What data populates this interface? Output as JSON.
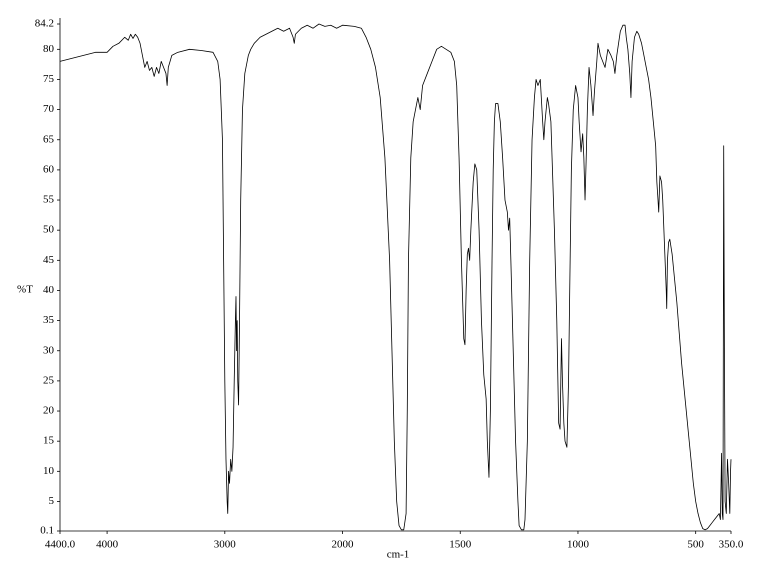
{
  "chart_data": {
    "type": "line",
    "y_label": "%T",
    "x_label": "cm-1",
    "color": "#000000",
    "grid": false,
    "xlim": [
      4400,
      350
    ],
    "x_scale_break": 2000,
    "xticks": [
      {
        "value": 4400,
        "label": "4400.0"
      },
      4000,
      3000,
      2000,
      1500,
      1000,
      500,
      {
        "value": 350,
        "label": "350.0"
      }
    ],
    "ylim": [
      0.1,
      84.2
    ],
    "yticks": [
      0.1,
      5,
      10,
      15,
      20,
      25,
      30,
      35,
      40,
      45,
      50,
      55,
      60,
      65,
      70,
      75,
      80,
      84.2
    ],
    "x": [
      4400,
      4300,
      4200,
      4100,
      4000,
      3950,
      3900,
      3850,
      3820,
      3800,
      3780,
      3760,
      3740,
      3720,
      3700,
      3680,
      3660,
      3640,
      3620,
      3600,
      3580,
      3560,
      3540,
      3520,
      3500,
      3490,
      3480,
      3450,
      3400,
      3300,
      3200,
      3100,
      3060,
      3040,
      3020,
      3010,
      3000,
      2990,
      2980,
      2975,
      2968,
      2960,
      2950,
      2940,
      2930,
      2920,
      2910,
      2905,
      2900,
      2895,
      2890,
      2883,
      2875,
      2865,
      2850,
      2830,
      2800,
      2780,
      2750,
      2700,
      2650,
      2600,
      2550,
      2500,
      2450,
      2420,
      2410,
      2400,
      2350,
      2300,
      2250,
      2200,
      2150,
      2100,
      2050,
      2000,
      1950,
      1920,
      1900,
      1880,
      1860,
      1840,
      1820,
      1800,
      1790,
      1780,
      1770,
      1760,
      1750,
      1740,
      1730,
      1725,
      1720,
      1710,
      1700,
      1690,
      1680,
      1670,
      1660,
      1640,
      1620,
      1600,
      1580,
      1560,
      1540,
      1525,
      1515,
      1505,
      1495,
      1485,
      1480,
      1475,
      1470,
      1465,
      1460,
      1455,
      1445,
      1438,
      1430,
      1420,
      1410,
      1400,
      1395,
      1390,
      1385,
      1378,
      1372,
      1365,
      1360,
      1355,
      1350,
      1340,
      1330,
      1320,
      1310,
      1300,
      1295,
      1290,
      1285,
      1275,
      1265,
      1255,
      1250,
      1240,
      1230,
      1225,
      1215,
      1205,
      1195,
      1185,
      1178,
      1170,
      1160,
      1150,
      1145,
      1140,
      1130,
      1125,
      1115,
      1110,
      1100,
      1090,
      1082,
      1076,
      1070,
      1066,
      1060,
      1055,
      1047,
      1040,
      1035,
      1028,
      1020,
      1010,
      1000,
      995,
      987,
      980,
      975,
      970,
      965,
      960,
      953,
      945,
      936,
      930,
      920,
      915,
      905,
      895,
      885,
      873,
      860,
      850,
      843,
      835,
      820,
      809,
      800,
      795,
      788,
      780,
      775,
      770,
      760,
      750,
      742,
      730,
      720,
      710,
      700,
      690,
      680,
      670,
      665,
      660,
      657,
      652,
      645,
      640,
      635,
      630,
      625,
      623,
      620,
      615,
      610,
      600,
      590,
      580,
      570,
      560,
      550,
      540,
      530,
      520,
      510,
      500,
      490,
      480,
      470,
      460,
      450,
      440,
      430,
      420,
      410,
      400,
      395,
      390,
      387,
      384,
      381,
      378,
      375,
      370,
      365,
      360,
      355,
      352,
      350
    ],
    "values": [
      78,
      78.5,
      79,
      79.5,
      79.5,
      80.5,
      81,
      82,
      81.5,
      82.5,
      81.8,
      82.5,
      82,
      81,
      79,
      77,
      78,
      76.5,
      77,
      75.5,
      77,
      76,
      78,
      77,
      76,
      74,
      77,
      79,
      79.5,
      80,
      79.8,
      79.5,
      78,
      75,
      65,
      45,
      25,
      12,
      5,
      3,
      10,
      8,
      12,
      10,
      14,
      25,
      35,
      39,
      30,
      35,
      25,
      21,
      35,
      55,
      70,
      76,
      79,
      80,
      81,
      82,
      82.5,
      83,
      83.5,
      83,
      83.5,
      82,
      81,
      82.5,
      83.5,
      84,
      83.5,
      84.2,
      83.8,
      84,
      83.5,
      84,
      83.8,
      83.5,
      82,
      80,
      77,
      72,
      62,
      45,
      30,
      15,
      5,
      1,
      0.3,
      0.3,
      3,
      20,
      45,
      62,
      68,
      70,
      72,
      70,
      74,
      76,
      78,
      80,
      80.5,
      80,
      79.5,
      78,
      74,
      62,
      45,
      32,
      31,
      40,
      46,
      47,
      45,
      50,
      58,
      61,
      60,
      50,
      35,
      26,
      24,
      22,
      15,
      9,
      20,
      45,
      60,
      68,
      71,
      71,
      68,
      62,
      55,
      53,
      50,
      52,
      45,
      30,
      15,
      5,
      1,
      0.3,
      0.3,
      2,
      15,
      45,
      65,
      72,
      75,
      74,
      75,
      68,
      65,
      68,
      72,
      71,
      68,
      62,
      50,
      35,
      18,
      17,
      32,
      25,
      18,
      15,
      14,
      25,
      40,
      60,
      70,
      74,
      72,
      68,
      63,
      66,
      62,
      55,
      62,
      70,
      77,
      74,
      69,
      73,
      78,
      81,
      79,
      78,
      77,
      80,
      79,
      78,
      76,
      79,
      83,
      84,
      84,
      82,
      80,
      76,
      72,
      78,
      82,
      83,
      82.5,
      81,
      79,
      77,
      75,
      72,
      68,
      64,
      58,
      55,
      53,
      59,
      58,
      55,
      50,
      45,
      40,
      37,
      45,
      48,
      48.5,
      46,
      42,
      38,
      33,
      28,
      24,
      20,
      16,
      12,
      8,
      5,
      3,
      1.5,
      0.5,
      0.3,
      0.5,
      1,
      1.5,
      2,
      2.5,
      3,
      2,
      13,
      3,
      2,
      64,
      30,
      5,
      3,
      12,
      8,
      3,
      10,
      12
    ]
  }
}
